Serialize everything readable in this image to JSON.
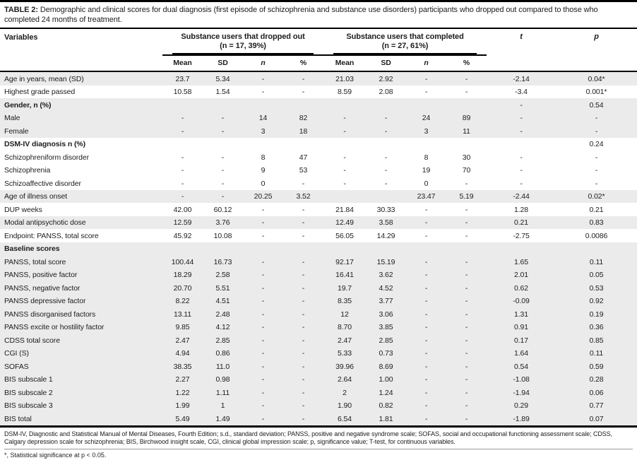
{
  "caption": {
    "label": "TABLE 2:",
    "text": "Demographic and clinical scores for dual diagnosis (first episode of schizophrenia and substance use disorders) participants who dropped out compared to those who completed 24 months of treatment."
  },
  "table": {
    "col1_header": "Variables",
    "groups": [
      {
        "title": "Substance users that dropped out",
        "subtitle": "(n = 17, 39%)"
      },
      {
        "title": "Substance users that completed",
        "subtitle": "(n = 27, 61%)"
      }
    ],
    "subheaders": [
      "Mean",
      "SD",
      "n",
      "%",
      "Mean",
      "SD",
      "n",
      "%"
    ],
    "t_header": "t",
    "p_header": "p",
    "rows": [
      {
        "label": "Age in years, mean (SD)",
        "bold": false,
        "shade": true,
        "cells": [
          "23.7",
          "5.34",
          "-",
          "-",
          "21.03",
          "2.92",
          "-",
          "-",
          "-2.14",
          "0.04*"
        ]
      },
      {
        "label": "Highest grade passed",
        "bold": false,
        "shade": false,
        "cells": [
          "10.58",
          "1.54",
          "-",
          "-",
          "8.59",
          "2.08",
          "-",
          "-",
          "-3.4",
          "0.001*"
        ]
      },
      {
        "label": "Gender, n (%)",
        "bold": true,
        "shade": true,
        "cells": [
          "",
          "",
          "",
          "",
          "",
          "",
          "",
          "",
          "-",
          "0.54"
        ]
      },
      {
        "label": "Male",
        "bold": false,
        "shade": true,
        "cells": [
          "-",
          "-",
          "14",
          "82",
          "-",
          "-",
          "24",
          "89",
          "-",
          "-"
        ]
      },
      {
        "label": "Female",
        "bold": false,
        "shade": true,
        "cells": [
          "-",
          "-",
          "3",
          "18",
          "-",
          "-",
          "3",
          "11",
          "-",
          "-"
        ]
      },
      {
        "label": "DSM-IV diagnosis n (%)",
        "bold": true,
        "shade": false,
        "cells": [
          "",
          "",
          "",
          "",
          "",
          "",
          "",
          "",
          "",
          "0.24"
        ]
      },
      {
        "label": "Schizophreniform disorder",
        "bold": false,
        "shade": false,
        "cells": [
          "-",
          "-",
          "8",
          "47",
          "-",
          "-",
          "8",
          "30",
          "-",
          "-"
        ]
      },
      {
        "label": "Schizophrenia",
        "bold": false,
        "shade": false,
        "cells": [
          "-",
          "-",
          "9",
          "53",
          "-",
          "-",
          "19",
          "70",
          "-",
          "-"
        ]
      },
      {
        "label": "Schizoaffective disorder",
        "bold": false,
        "shade": false,
        "cells": [
          "-",
          "-",
          "0",
          "-",
          "-",
          "-",
          "0",
          "-",
          "-",
          "-"
        ]
      },
      {
        "label": "Age of illness onset",
        "bold": false,
        "shade": true,
        "cells": [
          "-",
          "-",
          "20.25",
          "3.52",
          "",
          "",
          "23.47",
          "5.19",
          "-2.44",
          "0.02*"
        ]
      },
      {
        "label": "DUP weeks",
        "bold": false,
        "shade": false,
        "cells": [
          "42.00",
          "60.12",
          "-",
          "-",
          "21.84",
          "30.33",
          "-",
          "-",
          "1.28",
          "0.21"
        ]
      },
      {
        "label": "Modal antipsychotic dose",
        "bold": false,
        "shade": true,
        "cells": [
          "12.59",
          "3.76",
          "-",
          "-",
          "12.49",
          "3.58",
          "-",
          "-",
          "0.21",
          "0.83"
        ]
      },
      {
        "label": "Endpoint: PANSS, total score",
        "bold": false,
        "shade": false,
        "cells": [
          "45.92",
          "10.08",
          "-",
          "-",
          "56.05",
          "14.29",
          "-",
          "-",
          "-2.75",
          "0.0086"
        ]
      },
      {
        "label": "Baseline scores",
        "bold": true,
        "shade": true,
        "cells": [
          "",
          "",
          "",
          "",
          "",
          "",
          "",
          "",
          "",
          ""
        ]
      },
      {
        "label": "PANSS, total score",
        "bold": false,
        "shade": true,
        "cells": [
          "100.44",
          "16.73",
          "-",
          "-",
          "92.17",
          "15.19",
          "-",
          "-",
          "1.65",
          "0.11"
        ]
      },
      {
        "label": "PANSS, positive factor",
        "bold": false,
        "shade": true,
        "cells": [
          "18.29",
          "2.58",
          "-",
          "-",
          "16.41",
          "3.62",
          "-",
          "-",
          "2.01",
          "0.05"
        ]
      },
      {
        "label": "PANSS, negative factor",
        "bold": false,
        "shade": true,
        "cells": [
          "20.70",
          "5.51",
          "-",
          "-",
          "19.7",
          "4.52",
          "-",
          "-",
          "0.62",
          "0.53"
        ]
      },
      {
        "label": "PANSS depressive factor",
        "bold": false,
        "shade": true,
        "cells": [
          "8.22",
          "4.51",
          "-",
          "-",
          "8.35",
          "3.77",
          "-",
          "-",
          "-0.09",
          "0.92"
        ]
      },
      {
        "label": "PANSS disorganised factors",
        "bold": false,
        "shade": true,
        "cells": [
          "13.11",
          "2.48",
          "-",
          "-",
          "12",
          "3.06",
          "-",
          "-",
          "1.31",
          "0.19"
        ]
      },
      {
        "label": "PANSS excite or hostility factor",
        "bold": false,
        "shade": true,
        "cells": [
          "9.85",
          "4.12",
          "-",
          "-",
          "8.70",
          "3.85",
          "-",
          "-",
          "0.91",
          "0.36"
        ]
      },
      {
        "label": "CDSS total score",
        "bold": false,
        "shade": true,
        "cells": [
          "2.47",
          "2.85",
          "-",
          "-",
          "2.47",
          "2.85",
          "-",
          "-",
          "0.17",
          "0.85"
        ]
      },
      {
        "label": "CGI (S)",
        "bold": false,
        "shade": true,
        "cells": [
          "4.94",
          "0.86",
          "-",
          "-",
          "5.33",
          "0.73",
          "-",
          "-",
          "1.64",
          "0.11"
        ]
      },
      {
        "label": "SOFAS",
        "bold": false,
        "shade": true,
        "cells": [
          "38.35",
          "11.0",
          "-",
          "-",
          "39.96",
          "8.69",
          "-",
          "-",
          "0.54",
          "0.59"
        ]
      },
      {
        "label": "BIS subscale 1",
        "bold": false,
        "shade": true,
        "cells": [
          "2.27",
          "0.98",
          "-",
          "-",
          "2.64",
          "1.00",
          "-",
          "-",
          "-1.08",
          "0.28"
        ]
      },
      {
        "label": "BIS subscale 2",
        "bold": false,
        "shade": true,
        "cells": [
          "1.22",
          "1.11",
          "-",
          "-",
          "2",
          "1.24",
          "-",
          "-",
          "-1.94",
          "0.06"
        ]
      },
      {
        "label": "BIS subscale 3",
        "bold": false,
        "shade": true,
        "cells": [
          "1.99",
          "1",
          "-",
          "-",
          "1.90",
          "0.82",
          "-",
          "-",
          "0.29",
          "0.77"
        ]
      },
      {
        "label": "BIS total",
        "bold": false,
        "shade": true,
        "cells": [
          "5.49",
          "1.49",
          "-",
          "-",
          "6.54",
          "1.81",
          "-",
          "-",
          "-1.89",
          "0.07"
        ]
      }
    ]
  },
  "footnotes": {
    "abbreviations": "DSM-IV, Diagnostic and Statistical Manual of Mental Diseases, Fourth Edition; s.d., standard deviation; PANSS, positive and negative syndrome scale; SOFAS, social and occupational functioning assessment scale; CDSS, Calgary depression scale for schizophrenia; BIS, Birchwood insight scale, CGI, clinical global impression scale; p, significance value; T-test, for continuous variables.",
    "significance": "*, Statistical significance at p < 0.05."
  }
}
